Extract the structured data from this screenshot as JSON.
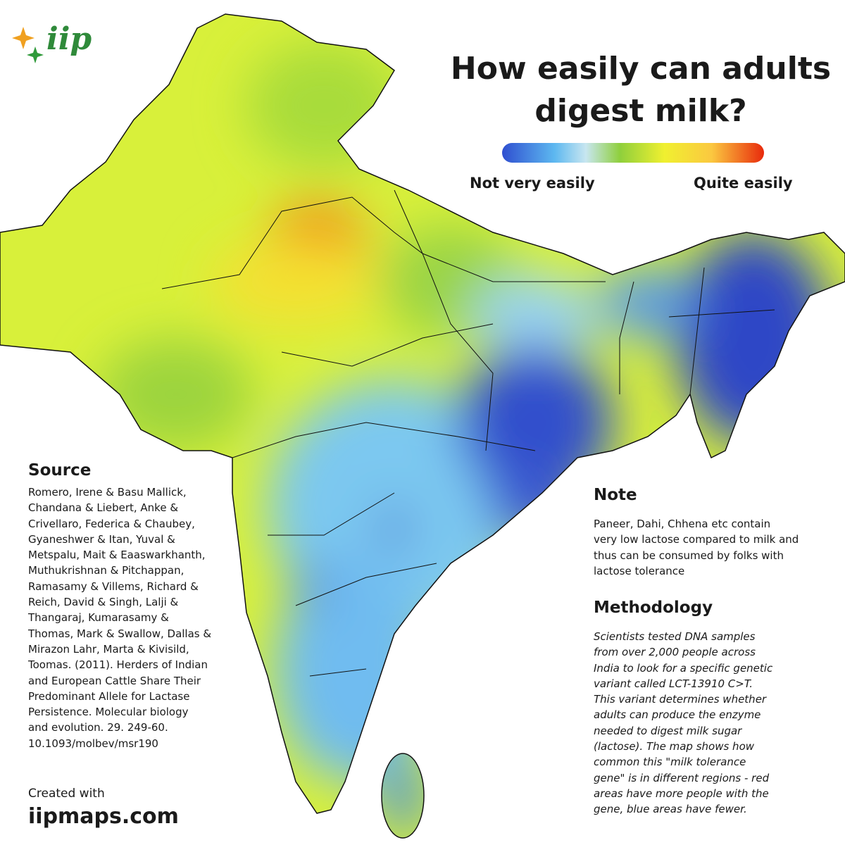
{
  "logo": "iip",
  "title": [
    "How easily can adults",
    "digest milk?"
  ],
  "legend": {
    "low": "Not very easily",
    "high": "Quite easily"
  },
  "source": {
    "heading": "Source",
    "lines": [
      "Romero, Irene & Basu Mallick,",
      "Chandana & Liebert, Anke &",
      "Crivellaro, Federica & Chaubey,",
      "Gyaneshwer & Itan, Yuval &",
      "Metspalu, Mait & Eaaswarkhanth,",
      "Muthukrishnan & Pitchappan,",
      "Ramasamy & Villems, Richard &",
      "Reich, David & Singh, Lalji &",
      "Thangaraj, Kumarasamy &",
      "Thomas, Mark & Swallow, Dallas &",
      "Mirazon Lahr, Marta & Kivisild,",
      "Toomas. (2011). Herders of Indian",
      "and European Cattle Share Their",
      "Predominant Allele for Lactase",
      "Persistence. Molecular biology",
      "and evolution. 29. 249-60.",
      "10.1093/molbev/msr190"
    ]
  },
  "note": {
    "heading": "Note",
    "lines": [
      "Paneer, Dahi, Chhena etc contain",
      "very low lactose compared to milk and",
      "thus can be consumed by folks with",
      "lactose tolerance"
    ]
  },
  "methodology": {
    "heading": "Methodology",
    "lines": [
      "Scientists tested DNA samples",
      "from over 2,000 people across",
      "India to look for a specific genetic",
      "variant called LCT-13910 C>T.",
      "This variant determines whether",
      "adults can produce the enzyme",
      "needed to digest milk sugar",
      "(lactose). The map shows how",
      "common this \"milk tolerance",
      "gene\" is in different regions - red",
      "areas have more people with the",
      "gene, blue areas have fewer."
    ]
  },
  "footer": {
    "created": "Created with",
    "site": "iipmaps.com"
  }
}
